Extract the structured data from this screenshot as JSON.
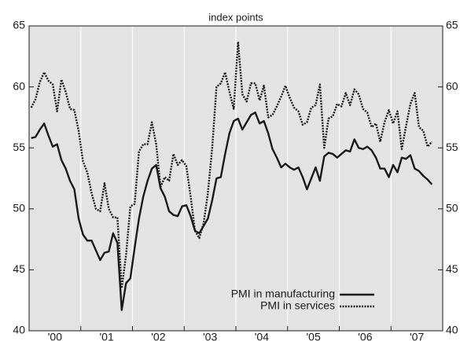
{
  "chart_data": {
    "type": "line",
    "title": "index points",
    "categories": [
      "'00",
      "'01",
      "'02",
      "'03",
      "'04",
      "'05",
      "'06",
      "'07"
    ],
    "series": [
      {
        "name": "PMI in manufacturing",
        "color": "#1a1a1a",
        "style": "solid",
        "values": [
          [
            55.8,
            55.9,
            56.5,
            57.0,
            56.0,
            55.1,
            55.3,
            54.0,
            53.3,
            52.3,
            51.6,
            49.2
          ],
          [
            47.9,
            47.4,
            47.4,
            46.6,
            45.8,
            46.4,
            46.5,
            48.0,
            47.2,
            41.7,
            43.9,
            44.3
          ],
          [
            46.8,
            49.2,
            51.0,
            52.3,
            53.3,
            53.6,
            51.7,
            51.0,
            49.8,
            49.5,
            49.4,
            50.2
          ],
          [
            50.3,
            49.4,
            48.2,
            48.0,
            48.6,
            49.2,
            50.7,
            52.5,
            52.6,
            54.5,
            56.2,
            57.2
          ],
          [
            57.4,
            56.5,
            57.1,
            57.7,
            57.9,
            57.0,
            57.2,
            56.2,
            54.9,
            54.2,
            53.4,
            53.7
          ],
          [
            53.4,
            53.2,
            53.4,
            52.6,
            51.6,
            52.5,
            53.4,
            52.3,
            54.3,
            54.6,
            54.5,
            54.2
          ],
          [
            54.5,
            54.8,
            54.7,
            55.7,
            55.0,
            54.9,
            55.1,
            54.8,
            54.2,
            53.3,
            53.3,
            52.6
          ],
          [
            53.6,
            53.0,
            54.2,
            54.1,
            54.4,
            53.3,
            53.1,
            52.7,
            52.4,
            52.0
          ]
        ]
      },
      {
        "name": "PMI in services",
        "color": "#1a1a1a",
        "style": "dotted",
        "values": [
          [
            58.3,
            59.0,
            60.4,
            61.2,
            60.5,
            60.2,
            58.0,
            60.6,
            59.6,
            58.2,
            58.1,
            56.4
          ],
          [
            53.9,
            53.0,
            51.3,
            50.0,
            49.8,
            52.1,
            50.0,
            49.3,
            49.3,
            43.5,
            46.2,
            50.2
          ],
          [
            50.4,
            54.7,
            55.3,
            55.3,
            57.1,
            55.3,
            51.8,
            52.6,
            52.3,
            54.5,
            53.6,
            54.0
          ],
          [
            53.5,
            51.0,
            48.2,
            47.6,
            48.8,
            51.3,
            55.0,
            60.0,
            60.3,
            61.2,
            59.6,
            58.2
          ],
          [
            63.7,
            59.4,
            58.8,
            60.3,
            60.3,
            58.9,
            60.1,
            57.5,
            57.7,
            58.4,
            59.2,
            60.1
          ],
          [
            59.1,
            58.3,
            58.0,
            56.9,
            57.1,
            58.3,
            58.5,
            60.2,
            55.0,
            57.4,
            57.6,
            58.6
          ],
          [
            58.4,
            59.5,
            58.5,
            59.8,
            59.4,
            58.2,
            57.9,
            56.7,
            57.0,
            55.5,
            57.1,
            58.1
          ],
          [
            57.0,
            58.0,
            54.9,
            56.8,
            58.6,
            59.5,
            56.7,
            56.4,
            55.1,
            55.5
          ]
        ]
      }
    ],
    "ylim": [
      40,
      65
    ],
    "yticks": [
      40,
      45,
      50,
      55,
      60,
      65
    ],
    "legend": "lower-right"
  }
}
